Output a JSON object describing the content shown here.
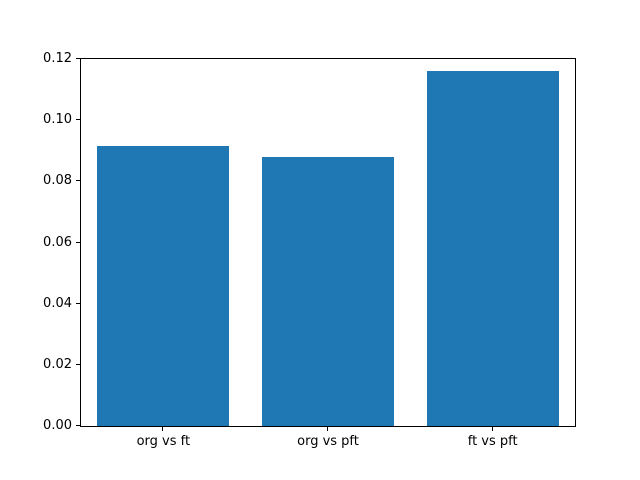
{
  "chart_data": {
    "type": "bar",
    "title": "",
    "xlabel": "",
    "ylabel": "",
    "categories": [
      "org vs ft",
      "org vs pft",
      "ft vs pft"
    ],
    "values": [
      0.0915,
      0.0878,
      0.116
    ],
    "ylim": [
      0,
      0.12
    ],
    "yticks": [
      0.0,
      0.02,
      0.04,
      0.06,
      0.08,
      0.1,
      0.12
    ],
    "ytick_labels": [
      "0.00",
      "0.02",
      "0.04",
      "0.06",
      "0.08",
      "0.10",
      "0.12"
    ],
    "bar_color": "#1f77b4",
    "bar_width_fraction": 0.8,
    "grid": false,
    "legend": "none",
    "background_color": "#ffffff",
    "spine_color": "#000000"
  }
}
